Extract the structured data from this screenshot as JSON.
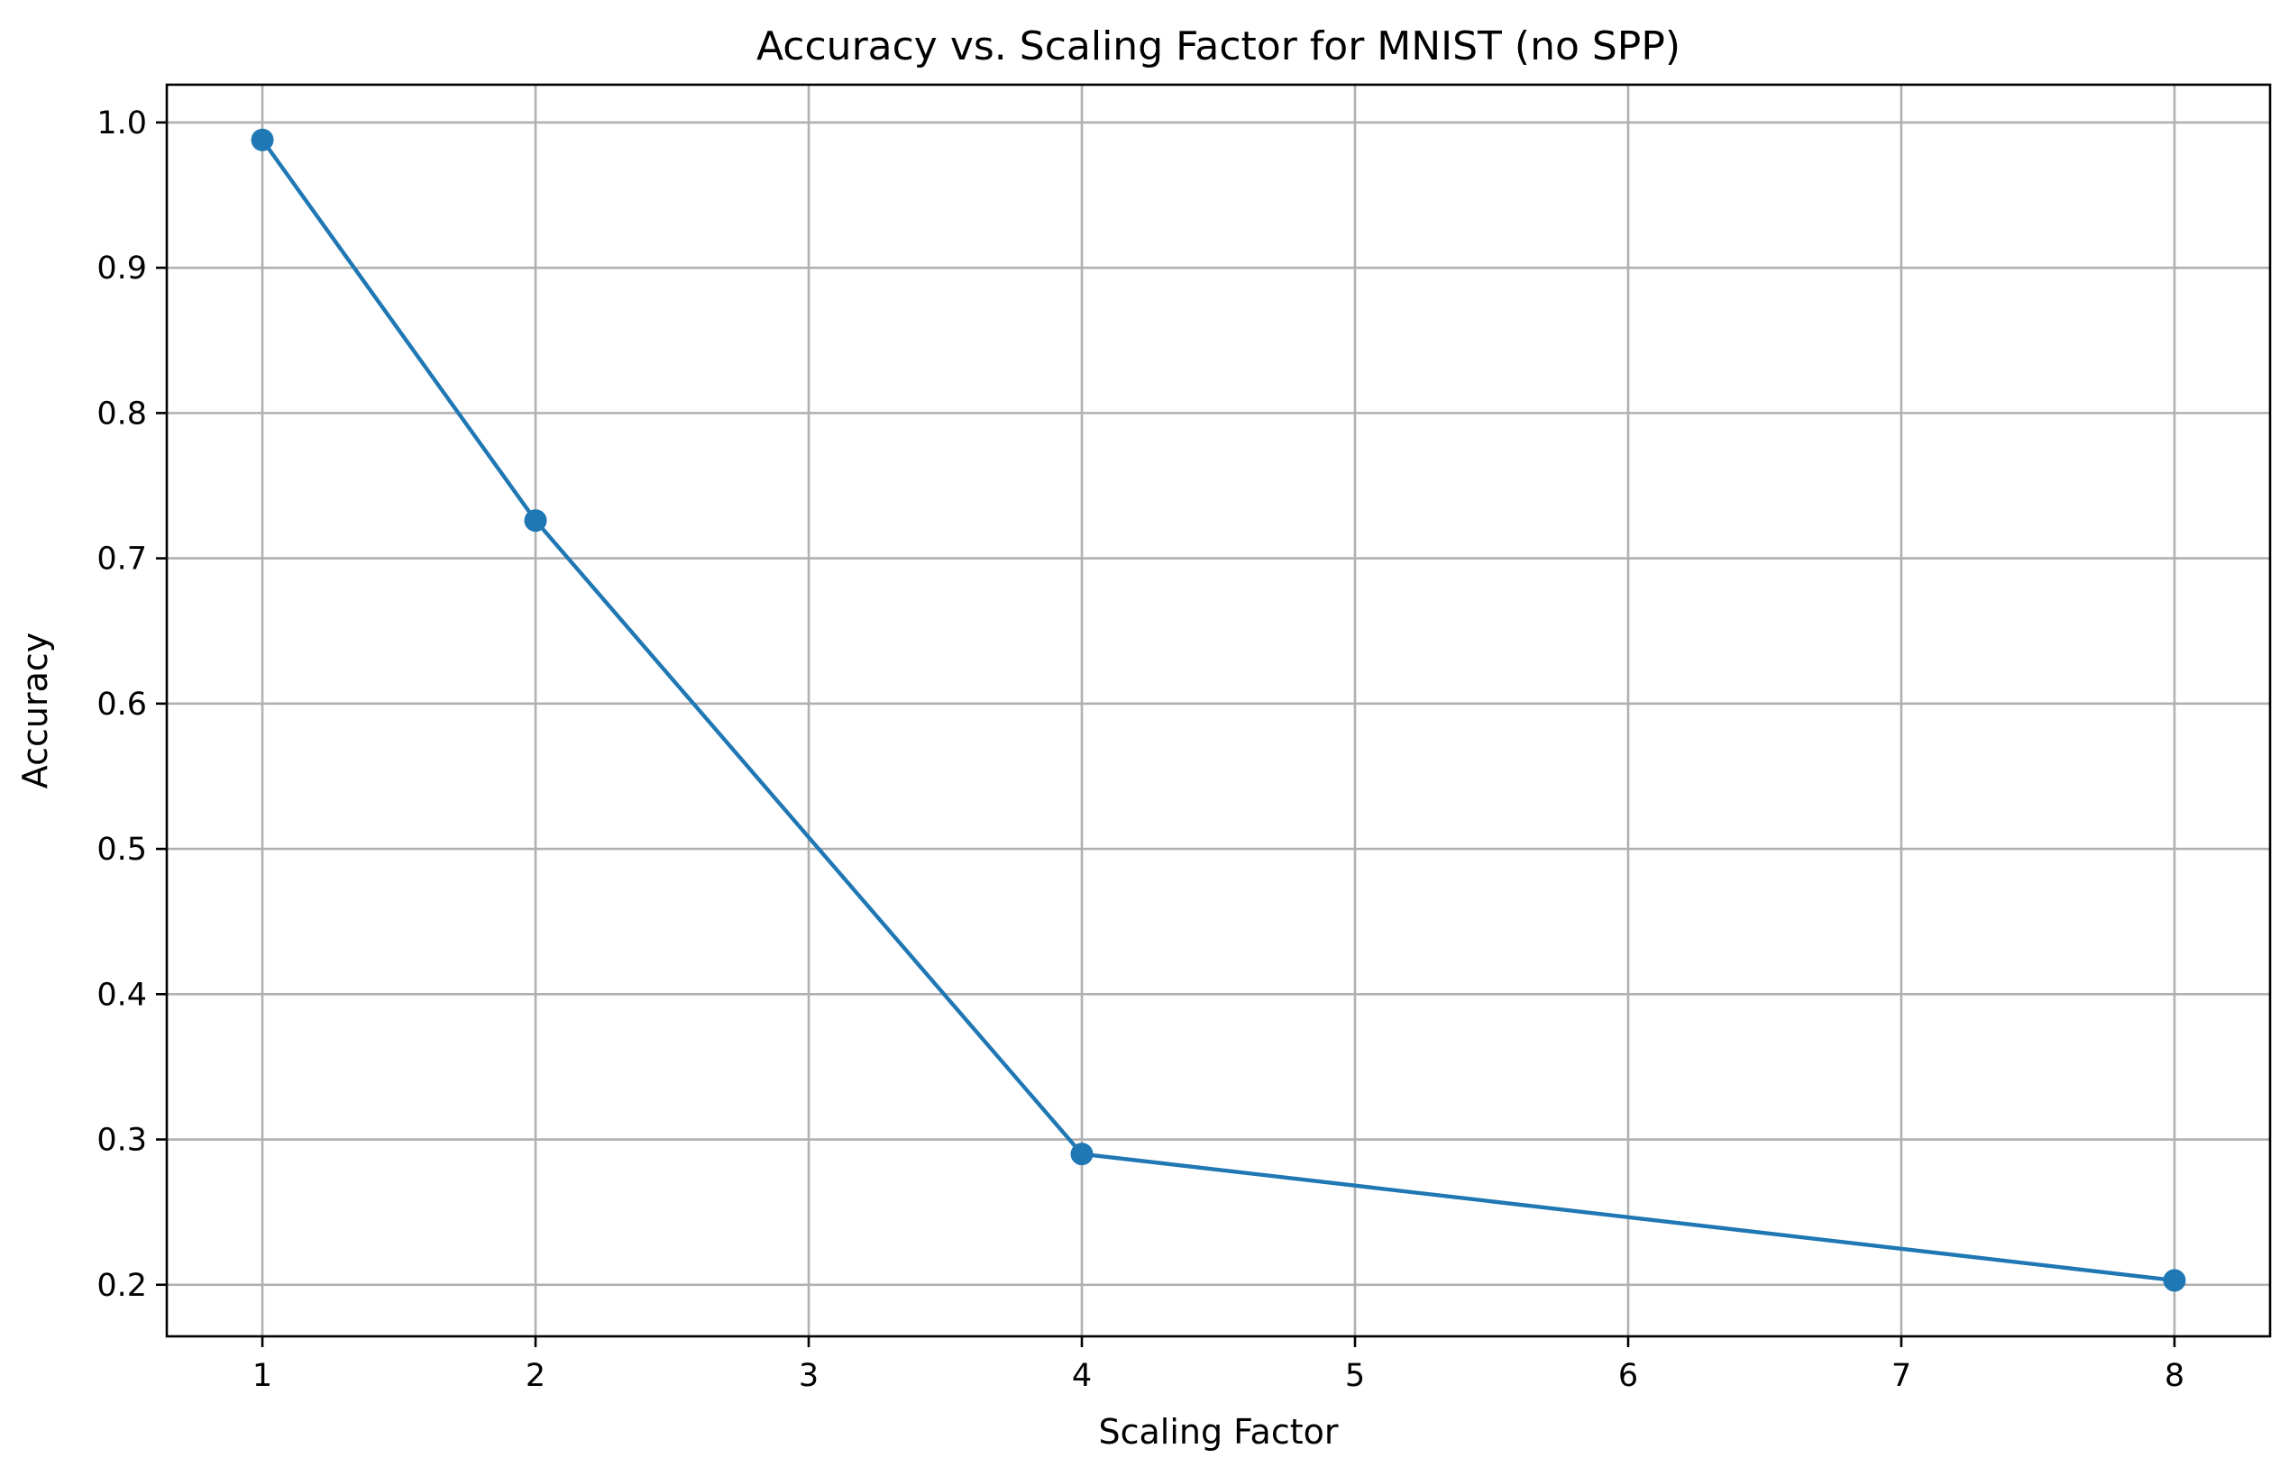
{
  "chart_data": {
    "type": "line",
    "title": "Accuracy vs. Scaling Factor for MNIST (no SPP)",
    "xlabel": "Scaling Factor",
    "ylabel": "Accuracy",
    "xlim": [
      0.65,
      8.35
    ],
    "ylim": [
      0.1645,
      1.026
    ],
    "xticks": [
      1,
      2,
      3,
      4,
      5,
      6,
      7,
      8
    ],
    "xtick_labels": [
      "1",
      "2",
      "3",
      "4",
      "5",
      "6",
      "7",
      "8"
    ],
    "yticks": [
      0.2,
      0.3,
      0.4,
      0.5,
      0.6,
      0.7,
      0.8,
      0.9,
      1.0
    ],
    "ytick_labels": [
      "0.2",
      "0.3",
      "0.4",
      "0.5",
      "0.6",
      "0.7",
      "0.8",
      "0.9",
      "1.0"
    ],
    "grid": true,
    "series": [
      {
        "x": [
          1,
          2,
          4,
          8
        ],
        "y": [
          0.988,
          0.726,
          0.29,
          0.203
        ],
        "color": "#1f77b4",
        "marker": "circle"
      }
    ]
  }
}
